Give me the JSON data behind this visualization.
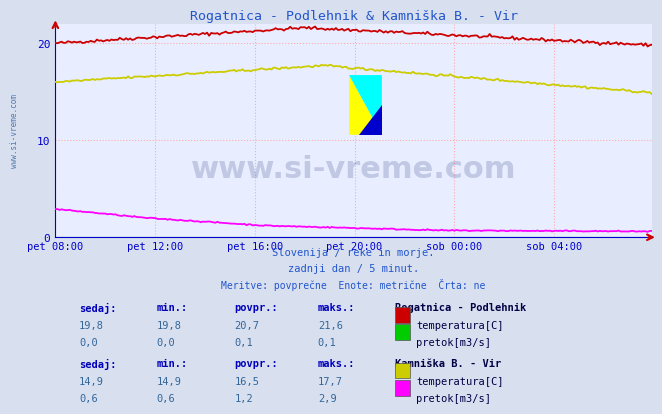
{
  "title": "Rogatnica - Podlehnik & Kamniška B. - Vir",
  "title_color": "#2255cc",
  "bg_color": "#d8e0f0",
  "plot_bg_color": "#e8eeff",
  "grid_color": "#ffaaaa",
  "grid_style": ":",
  "watermark": "www.si-vreme.com",
  "subtitle1": "Slovenija / reke in morje.",
  "subtitle2": "zadnji dan / 5 minut.",
  "subtitle3": "Meritve: povprečne  Enote: metrične  Črta: ne",
  "xtick_labels": [
    "pet 08:00",
    "pet 12:00",
    "pet 16:00",
    "pet 20:00",
    "sob 00:00",
    "sob 04:00"
  ],
  "xtick_positions": [
    0,
    48,
    96,
    144,
    192,
    240
  ],
  "ylim": [
    0,
    22
  ],
  "yticks": [
    0,
    10,
    20
  ],
  "n_points": 288,
  "station1_name": "Rogatnica - Podlehnik",
  "station2_name": "Kamniška B. - Vir",
  "s1_sedaj": "19,8",
  "s1_min": "19,8",
  "s1_povpr": "20,7",
  "s1_maks": "21,6",
  "s1_pretok_sedaj": "0,0",
  "s1_pretok_min": "0,0",
  "s1_pretok_povpr": "0,1",
  "s1_pretok_maks": "0,1",
  "s2_sedaj": "14,9",
  "s2_min": "14,9",
  "s2_povpr": "16,5",
  "s2_maks": "17,7",
  "s2_pretok_sedaj": "0,6",
  "s2_pretok_min": "0,6",
  "s2_pretok_povpr": "1,2",
  "s2_pretok_maks": "2,9",
  "color_rogatnica_temp": "#cc0000",
  "color_rogatnica_pretok": "#00cc00",
  "color_kamniska_temp": "#cccc00",
  "color_kamniska_pretok": "#ff00ff",
  "axis_color": "#0000cc",
  "arrow_color": "#cc0000",
  "table_header_color": "#0000bb",
  "table_value_color": "#336699",
  "station_name_color": "#000044",
  "left_text_color": "#5577aa"
}
